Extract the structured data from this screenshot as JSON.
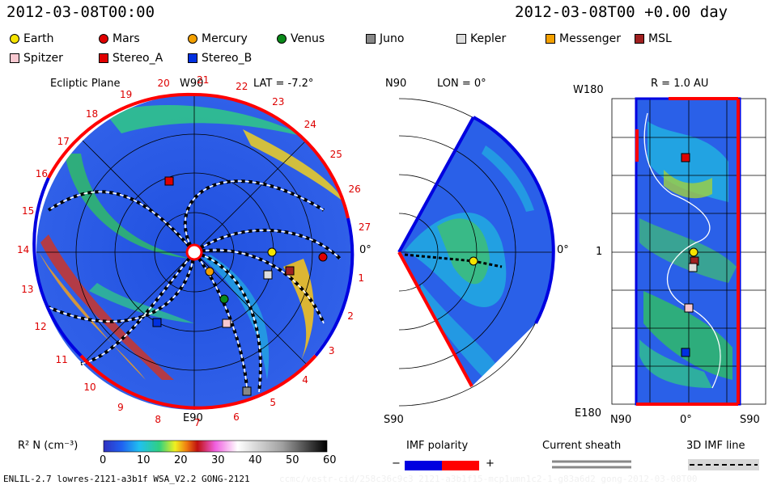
{
  "header": {
    "left_time": "2012-03-08T00:00",
    "right_time": "2012-03-08T00 +0.00 day"
  },
  "legend": {
    "items": [
      {
        "label": "Earth",
        "color": "#f6e400",
        "shape": "circle"
      },
      {
        "label": "Mars",
        "color": "#e00000",
        "shape": "circle"
      },
      {
        "label": "Mercury",
        "color": "#f3a000",
        "shape": "circle"
      },
      {
        "label": "Venus",
        "color": "#0a8a1a",
        "shape": "circle"
      },
      {
        "label": "Juno",
        "color": "#888888",
        "shape": "square"
      },
      {
        "label": "Kepler",
        "color": "#dddddd",
        "shape": "square"
      },
      {
        "label": "Messenger",
        "color": "#f3a000",
        "shape": "square"
      },
      {
        "label": "MSL",
        "color": "#a02020",
        "shape": "square"
      },
      {
        "label": "Spitzer",
        "color": "#f8c8d0",
        "shape": "square"
      },
      {
        "label": "Stereo_A",
        "color": "#e00000",
        "shape": "square"
      },
      {
        "label": "Stereo_B",
        "color": "#0030e0",
        "shape": "square"
      }
    ]
  },
  "ecliptic": {
    "title": "Ecliptic Plane",
    "top_label": "W90",
    "lat_label": "LAT = -7.2°",
    "bottom_label": "E90",
    "right_label": "0°",
    "ticks": [
      "1",
      "2",
      "3",
      "4",
      "5",
      "6",
      "7",
      "8",
      "9",
      "10",
      "11",
      "12",
      "13",
      "14",
      "15",
      "16",
      "17",
      "18",
      "19",
      "20",
      "21",
      "22",
      "23",
      "24",
      "25",
      "26",
      "27"
    ]
  },
  "meridional": {
    "top_label": "N90",
    "lon_label": "LON = 0°",
    "right_label": "0°",
    "bottom_label": "S90"
  },
  "surface": {
    "top_left_label": "W180",
    "r_label": "R = 1.0 AU",
    "mid_label": "1",
    "bottom_left_label": "E180",
    "x_labels": [
      "N90",
      "0°",
      "S90"
    ]
  },
  "colorbar": {
    "label": "R² N (cm⁻³)",
    "ticks": [
      "0",
      "10",
      "20",
      "30",
      "40",
      "50",
      "60"
    ],
    "stops": [
      "#3030c0",
      "#2060f0",
      "#20c0f0",
      "#30d080",
      "#f0f020",
      "#f08010",
      "#c01010",
      "#f060e0",
      "#ffffff",
      "#b0b0b0",
      "#000000"
    ]
  },
  "imf": {
    "title": "IMF polarity",
    "minus": "−",
    "plus": "+",
    "neg_color": "#0000e0",
    "pos_color": "#ff0000"
  },
  "current_sheath": {
    "title": "Current sheath"
  },
  "imf_line": {
    "title": "3D IMF line"
  },
  "footer": {
    "model": "ENLIL-2.7 lowres-2121-a3b1f WSA_V2.2 GONG-2121",
    "watermark": "ccmc/vestr-cid/258c36c9c3 2121-a3b1f15-mcp1umn1c2-1-g83a6d2 gong-2012-03-08T00"
  }
}
